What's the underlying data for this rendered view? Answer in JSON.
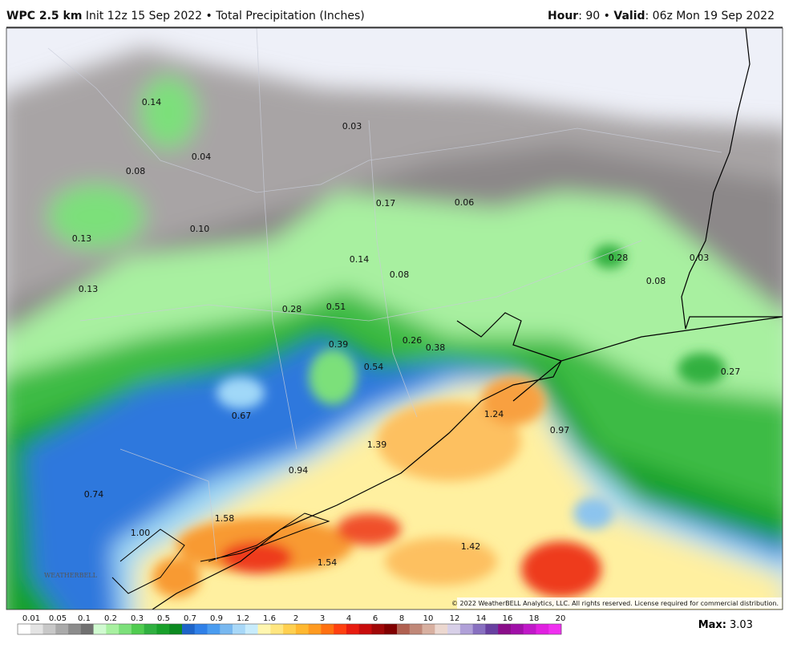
{
  "header": {
    "model": "WPC 2.5 km",
    "description": "Init 12z 15 Sep 2022 • Total Precipitation (Inches)",
    "hour_label": "Hour",
    "hour_text": ": 90 •",
    "valid_label": "Valid",
    "valid_text": ": 06z Mon 19 Sep 2022"
  },
  "map": {
    "labels": [
      "0.14",
      "0.03",
      "0.04",
      "0.08",
      "0.17",
      "0.06",
      "0.13",
      "0.10",
      "0.14",
      "0.28",
      "0.03",
      "0.13",
      "0.08",
      "0.08",
      "0.28",
      "0.51",
      "0.39",
      "0.26",
      "0.38",
      "0.54",
      "0.27",
      "0.67",
      "1.24",
      "0.97",
      "1.39",
      "0.94",
      "0.74",
      "1.58",
      "1.00",
      "1.42",
      "1.54"
    ],
    "logo": "WEATHERBELL",
    "copyright": "© 2022 WeatherBELL Analytics, LLC. All rights reserved. License required for commercial distribution."
  },
  "colorbar": {
    "labels": [
      "0.01",
      "0.05",
      "0.1",
      "0.2",
      "0.3",
      "0.5",
      "0.7",
      "0.9",
      "1.2",
      "1.6",
      "2",
      "3",
      "4",
      "6",
      "8",
      "10",
      "12",
      "14",
      "16",
      "18",
      "20"
    ]
  },
  "footer": {
    "max_label": "Max:",
    "max_value": "3.03"
  }
}
